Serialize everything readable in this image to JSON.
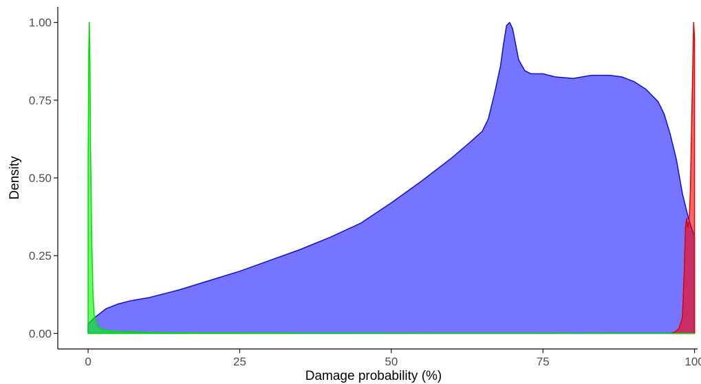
{
  "chart_data": {
    "type": "area",
    "xlabel": "Damage probability (%)",
    "ylabel": "Density",
    "xlim": [
      -5,
      100.5
    ],
    "ylim": [
      -0.05,
      1.05
    ],
    "x_ticks": [
      0,
      25,
      50,
      75,
      100
    ],
    "x_tick_labels": [
      "0",
      "25",
      "50",
      "75",
      "100"
    ],
    "y_ticks": [
      0,
      0.25,
      0.5,
      0.75,
      1
    ],
    "y_tick_labels": [
      "0.00",
      "0.25",
      "0.50",
      "0.75",
      "1.00"
    ],
    "grid": false,
    "legend": "none",
    "series": [
      {
        "fill": "#0000ff",
        "stroke": "#1010c8",
        "opacity": 0.54,
        "points": [
          [
            0,
            0.03
          ],
          [
            1,
            0.05
          ],
          [
            2,
            0.065
          ],
          [
            3,
            0.08
          ],
          [
            5,
            0.095
          ],
          [
            7,
            0.105
          ],
          [
            10,
            0.115
          ],
          [
            15,
            0.14
          ],
          [
            20,
            0.17
          ],
          [
            25,
            0.2
          ],
          [
            30,
            0.235
          ],
          [
            35,
            0.27
          ],
          [
            40,
            0.31
          ],
          [
            45,
            0.355
          ],
          [
            50,
            0.42
          ],
          [
            55,
            0.49
          ],
          [
            60,
            0.565
          ],
          [
            63,
            0.615
          ],
          [
            65,
            0.65
          ],
          [
            66,
            0.69
          ],
          [
            67,
            0.77
          ],
          [
            68,
            0.86
          ],
          [
            68.5,
            0.93
          ],
          [
            69,
            0.99
          ],
          [
            69.5,
            1.0
          ],
          [
            70,
            0.98
          ],
          [
            70.5,
            0.93
          ],
          [
            71,
            0.88
          ],
          [
            72,
            0.845
          ],
          [
            73,
            0.835
          ],
          [
            75,
            0.835
          ],
          [
            77,
            0.825
          ],
          [
            80,
            0.82
          ],
          [
            83,
            0.83
          ],
          [
            86,
            0.83
          ],
          [
            88,
            0.825
          ],
          [
            90,
            0.81
          ],
          [
            92,
            0.785
          ],
          [
            94,
            0.745
          ],
          [
            95,
            0.705
          ],
          [
            96,
            0.64
          ],
          [
            97,
            0.56
          ],
          [
            98,
            0.45
          ],
          [
            99,
            0.37
          ],
          [
            100,
            0.31
          ]
        ]
      },
      {
        "fill": "#ff0000",
        "stroke": "#e00000",
        "opacity": 0.6,
        "points": [
          [
            96,
            0
          ],
          [
            96.8,
            0.005
          ],
          [
            97.4,
            0.015
          ],
          [
            98,
            0.05
          ],
          [
            98.3,
            0.2
          ],
          [
            98.5,
            0.34
          ],
          [
            98.7,
            0.37
          ],
          [
            98.9,
            0.34
          ],
          [
            99.1,
            0.36
          ],
          [
            99.3,
            0.45
          ],
          [
            99.5,
            0.65
          ],
          [
            99.7,
            0.85
          ],
          [
            99.85,
            1.0
          ],
          [
            100,
            0.95
          ]
        ]
      },
      {
        "fill": "#00ff00",
        "stroke": "#00dd00",
        "opacity": 0.6,
        "points": [
          [
            0,
            0.55
          ],
          [
            0.1,
            0.9
          ],
          [
            0.2,
            1.0
          ],
          [
            0.3,
            0.88
          ],
          [
            0.4,
            0.6
          ],
          [
            0.6,
            0.3
          ],
          [
            0.8,
            0.13
          ],
          [
            1,
            0.06
          ],
          [
            1.5,
            0.025
          ],
          [
            2,
            0.015
          ],
          [
            3,
            0.01
          ],
          [
            5,
            0.006
          ],
          [
            8,
            0.004
          ],
          [
            12,
            0.002
          ],
          [
            20,
            0.001
          ],
          [
            40,
            0.0005
          ],
          [
            70,
            0.0002
          ],
          [
            100,
            0
          ]
        ]
      }
    ]
  }
}
